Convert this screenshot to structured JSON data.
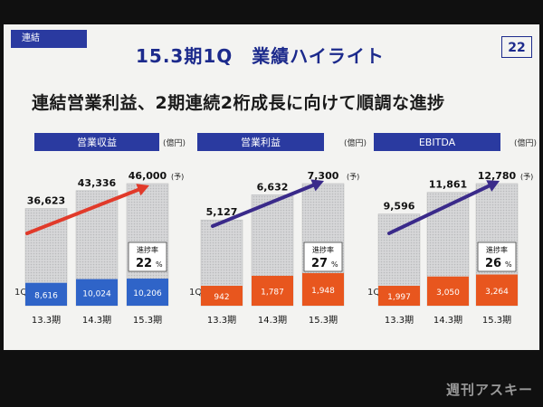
{
  "slide": {
    "tag": "連結",
    "title": "15.3期1Q　業績ハイライト",
    "page_number": "22",
    "headline": "連結営業利益、2期連続2桁成長に向けて順調な進捗"
  },
  "watermark": "週刊アスキー",
  "colors": {
    "tag_bg": "#2a3aa0",
    "title": "#1c2a8c",
    "bar_1q_revenue": "#2f64c8",
    "bar_1q_profit": "#e8561e",
    "bar_1q_ebitda": "#e8561e",
    "bar_total": "#c9cacb",
    "arrow_red": "#e13a2a",
    "arrow_purple": "#3a2a8a"
  },
  "chart_data": [
    {
      "type": "bar",
      "title": "営業収益",
      "unit": "(億円)",
      "categories": [
        "13.3期",
        "14.3期",
        "15.3期"
      ],
      "row_label": "1Q",
      "series": [
        {
          "values": [
            36623,
            43336,
            46000
          ],
          "labels": [
            "36,623",
            "43,336",
            "46,000"
          ]
        },
        {
          "name": "1Q",
          "values": [
            8616,
            10024,
            10206
          ],
          "labels": [
            "8,616",
            "10,024",
            "10,206"
          ]
        }
      ],
      "forecast_mark": "(予)",
      "progress_label": "進捗率",
      "progress_value": "22",
      "progress_unit": "%"
    },
    {
      "type": "bar",
      "title": "営業利益",
      "unit": "(億円)",
      "categories": [
        "13.3期",
        "14.3期",
        "15.3期"
      ],
      "row_label": "1Q",
      "series": [
        {
          "values": [
            5127,
            6632,
            7300
          ],
          "labels": [
            "5,127",
            "6,632",
            "7,300"
          ]
        },
        {
          "name": "1Q",
          "values": [
            942,
            1787,
            1948
          ],
          "labels": [
            "942",
            "1,787",
            "1,948"
          ]
        }
      ],
      "forecast_mark": "(予)",
      "progress_label": "進捗率",
      "progress_value": "27",
      "progress_unit": "%"
    },
    {
      "type": "bar",
      "title": "EBITDA",
      "unit": "(億円)",
      "categories": [
        "13.3期",
        "14.3期",
        "15.3期"
      ],
      "row_label": "1Q",
      "series": [
        {
          "values": [
            9596,
            11861,
            12780
          ],
          "labels": [
            "9,596",
            "11,861",
            "12,780"
          ]
        },
        {
          "name": "1Q",
          "values": [
            1997,
            3050,
            3264
          ],
          "labels": [
            "1,997",
            "3,050",
            "3,264"
          ]
        }
      ],
      "forecast_mark": "(予)",
      "progress_label": "進捗率",
      "progress_value": "26",
      "progress_unit": "%"
    }
  ]
}
